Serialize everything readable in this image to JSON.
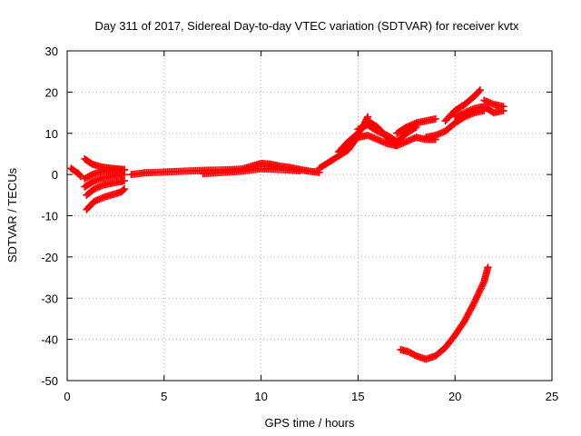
{
  "chart_data": {
    "type": "scatter",
    "title": "Day 311 of 2017, Sidereal Day-to-day VTEC variation (SDTVAR) for receiver kvtx",
    "xlabel": "GPS time / hours",
    "ylabel": "SDTVAR / TECUs",
    "xlim": [
      0,
      25
    ],
    "ylim": [
      -50,
      30
    ],
    "xticks": [
      0,
      5,
      10,
      15,
      20,
      25
    ],
    "yticks": [
      -50,
      -40,
      -30,
      -20,
      -10,
      0,
      10,
      20,
      30
    ],
    "xtick_labels": [
      "0",
      "5",
      "10",
      "15",
      "20",
      "25"
    ],
    "ytick_labels": [
      "-50",
      "-40",
      "-30",
      "-20",
      "-10",
      "0",
      "10",
      "20",
      "30"
    ],
    "grid": true,
    "marker": "plus",
    "color": "#ff0000",
    "series": [
      {
        "name": "arc-start-1",
        "x": [
          0.2,
          0.4,
          0.6,
          0.7
        ],
        "y": [
          1.5,
          0.8,
          0.2,
          -0.5
        ]
      },
      {
        "name": "arc-fan-1",
        "x": [
          0.9,
          1.3,
          1.8,
          2.3,
          2.7,
          2.95
        ],
        "y": [
          3.8,
          2.5,
          1.8,
          1.5,
          1.3,
          1.2
        ]
      },
      {
        "name": "arc-fan-2",
        "x": [
          0.9,
          1.3,
          1.8,
          2.3,
          2.7,
          2.95
        ],
        "y": [
          -1.0,
          0.0,
          0.8,
          1.0,
          1.2,
          1.1
        ]
      },
      {
        "name": "arc-fan-3",
        "x": [
          0.9,
          1.3,
          1.8,
          2.3,
          2.7,
          2.95
        ],
        "y": [
          -3.0,
          -1.8,
          -0.9,
          -0.4,
          -0.1,
          0.0
        ]
      },
      {
        "name": "arc-fan-4",
        "x": [
          1.0,
          1.4,
          1.9,
          2.4,
          2.8,
          2.95
        ],
        "y": [
          -5.0,
          -3.5,
          -2.5,
          -2.0,
          -1.7,
          -1.5
        ]
      },
      {
        "name": "arc-fan-5",
        "x": [
          1.0,
          1.4,
          1.9,
          2.4,
          2.8,
          2.95
        ],
        "y": [
          -8.5,
          -6.5,
          -5.5,
          -4.8,
          -4.2,
          -3.5
        ]
      },
      {
        "name": "arc-day",
        "x": [
          3.3,
          4.0,
          5.0,
          6.0,
          7.0,
          8.0,
          9.0,
          10.0,
          10.5,
          11.0,
          11.5,
          12.0,
          12.5,
          13.0
        ],
        "y": [
          0.0,
          0.4,
          0.6,
          0.8,
          1.0,
          1.1,
          1.3,
          2.7,
          2.5,
          2.0,
          1.7,
          1.2,
          0.8,
          0.5
        ]
      },
      {
        "name": "arc-day-2",
        "x": [
          7.0,
          8.0,
          9.0,
          10.0,
          11.0,
          12.0
        ],
        "y": [
          0.2,
          0.5,
          0.8,
          1.4,
          1.2,
          0.9
        ]
      },
      {
        "name": "arc-rise-1",
        "x": [
          13.0,
          13.5,
          14.0,
          14.5,
          14.8,
          15.0,
          15.3,
          15.5
        ],
        "y": [
          1.5,
          3.0,
          4.5,
          6.0,
          8.0,
          10.0,
          12.0,
          14.0
        ]
      },
      {
        "name": "arc-rise-2",
        "x": [
          14.0,
          14.5,
          15.0,
          15.5,
          16.0,
          16.5,
          17.0
        ],
        "y": [
          5.5,
          8.0,
          10.0,
          13.0,
          11.5,
          9.0,
          7.0
        ]
      },
      {
        "name": "arc-mid-1",
        "x": [
          15.0,
          15.5,
          16.0,
          16.5,
          17.0,
          17.5,
          18.0,
          18.5,
          19.0
        ],
        "y": [
          9.0,
          9.5,
          8.5,
          7.5,
          7.0,
          8.0,
          9.0,
          8.5,
          8.5
        ]
      },
      {
        "name": "arc-mid-2",
        "x": [
          15.0,
          15.5,
          16.0,
          16.5,
          17.0,
          17.5,
          18.0
        ],
        "y": [
          11.0,
          12.0,
          10.5,
          9.5,
          8.0,
          10.0,
          11.5
        ]
      },
      {
        "name": "arc-mid-3",
        "x": [
          17.0,
          17.5,
          18.0,
          18.5,
          19.0
        ],
        "y": [
          10.0,
          11.5,
          12.5,
          13.0,
          13.5
        ]
      },
      {
        "name": "arc-late-1",
        "x": [
          18.5,
          19.0,
          19.5,
          20.0,
          20.5,
          21.0,
          21.5
        ],
        "y": [
          9.0,
          9.5,
          10.5,
          12.5,
          14.0,
          15.0,
          15.5
        ]
      },
      {
        "name": "arc-late-2",
        "x": [
          19.5,
          20.0,
          20.5,
          21.0,
          21.3
        ],
        "y": [
          13.0,
          15.5,
          17.0,
          19.0,
          20.5
        ]
      },
      {
        "name": "arc-late-3",
        "x": [
          20.0,
          20.5,
          21.0,
          21.5,
          22.0,
          22.5
        ],
        "y": [
          14.0,
          15.0,
          16.0,
          16.5,
          15.0,
          15.5
        ]
      },
      {
        "name": "arc-late-4",
        "x": [
          21.5,
          22.0,
          22.5
        ],
        "y": [
          18.0,
          17.0,
          16.5
        ]
      },
      {
        "name": "arc-negative",
        "x": [
          17.2,
          17.6,
          18.0,
          18.5,
          19.0,
          19.5,
          20.0,
          20.5,
          21.0,
          21.5,
          21.7
        ],
        "y": [
          -42.5,
          -43.0,
          -44.0,
          -44.8,
          -44.0,
          -42.0,
          -39.0,
          -35.5,
          -31.0,
          -26.0,
          -22.5
        ]
      }
    ]
  }
}
